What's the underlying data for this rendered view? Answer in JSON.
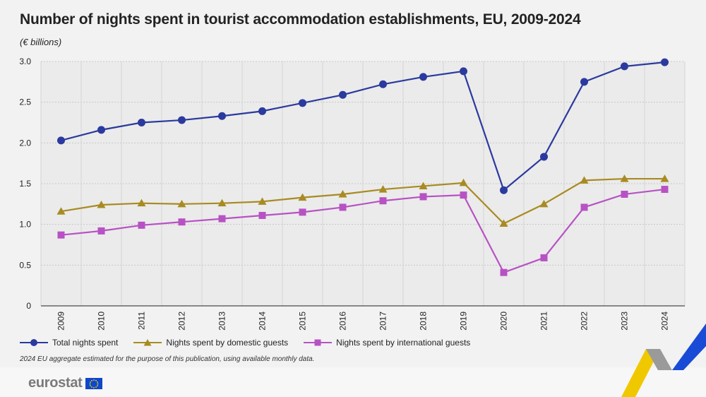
{
  "title": "Number of nights spent in tourist accommodation establishments, EU, 2009-2024",
  "subtitle": "(€ billions)",
  "footnote": "2024 EU aggregate estimated for the purpose of this publication, using available monthly data.",
  "logo_text": "eurostat",
  "icons": {
    "logo_flag": "eu-flag-icon",
    "corner": "eurostat-corner-ribbon-icon"
  },
  "colors": {
    "total": "#2b3a9e",
    "domestic": "#a88b22",
    "international": "#b752c4",
    "ribbon_yellow": "#f0c800",
    "ribbon_blue": "#1a4bd6"
  },
  "chart_data": {
    "type": "line",
    "categories": [
      "2009",
      "2010",
      "2011",
      "2012",
      "2013",
      "2014",
      "2015",
      "2016",
      "2017",
      "2018",
      "2019",
      "2020",
      "2021",
      "2022",
      "2023",
      "2024"
    ],
    "ylim": [
      0,
      3.0
    ],
    "yticks": [
      "0",
      "0.5",
      "1.0",
      "1.5",
      "2.0",
      "2.5",
      "3.0"
    ],
    "grid": true,
    "legend_position": "bottom",
    "series": [
      {
        "name": "Total nights spent",
        "marker": "circle",
        "values": [
          2.03,
          2.16,
          2.25,
          2.28,
          2.33,
          2.39,
          2.49,
          2.59,
          2.72,
          2.81,
          2.88,
          1.42,
          1.83,
          2.75,
          2.94,
          2.99
        ]
      },
      {
        "name": "Nights spent by domestic guests",
        "marker": "triangle",
        "values": [
          1.16,
          1.24,
          1.26,
          1.25,
          1.26,
          1.28,
          1.33,
          1.37,
          1.43,
          1.47,
          1.51,
          1.01,
          1.25,
          1.54,
          1.56,
          1.56
        ]
      },
      {
        "name": "Nights spent by international guests",
        "marker": "square",
        "values": [
          0.87,
          0.92,
          0.99,
          1.03,
          1.07,
          1.11,
          1.15,
          1.21,
          1.29,
          1.34,
          1.36,
          0.41,
          0.59,
          1.21,
          1.37,
          1.43
        ]
      }
    ]
  }
}
